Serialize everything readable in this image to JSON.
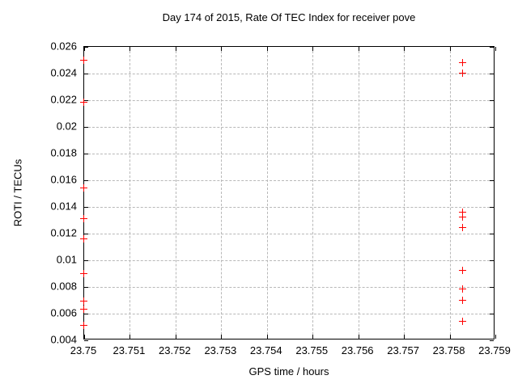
{
  "window": {
    "background_color": "#ffffff",
    "axis_color": "#000000",
    "grid_color": "#b8b8b8"
  },
  "chart_data": {
    "type": "scatter",
    "title": "Day 174 of 2015, Rate Of TEC Index for receiver pove",
    "xlabel": "GPS time / hours",
    "ylabel": "ROTI / TECUs",
    "xlim": [
      23.75,
      23.759
    ],
    "ylim": [
      0.004,
      0.026
    ],
    "grid": true,
    "legend": "none",
    "marker_symbol": "plus",
    "marker_color": "#ff0000",
    "x_ticks": [
      {
        "v": 23.75,
        "label": "23.75"
      },
      {
        "v": 23.751,
        "label": "23.751"
      },
      {
        "v": 23.752,
        "label": "23.752"
      },
      {
        "v": 23.753,
        "label": "23.753"
      },
      {
        "v": 23.754,
        "label": "23.754"
      },
      {
        "v": 23.755,
        "label": "23.755"
      },
      {
        "v": 23.756,
        "label": "23.756"
      },
      {
        "v": 23.757,
        "label": "23.757"
      },
      {
        "v": 23.758,
        "label": "23.758"
      },
      {
        "v": 23.759,
        "label": "23.759"
      }
    ],
    "y_ticks": [
      {
        "v": 0.004,
        "label": "0.004"
      },
      {
        "v": 0.006,
        "label": "0.006"
      },
      {
        "v": 0.008,
        "label": "0.008"
      },
      {
        "v": 0.01,
        "label": "0.01"
      },
      {
        "v": 0.012,
        "label": "0.012"
      },
      {
        "v": 0.014,
        "label": "0.014"
      },
      {
        "v": 0.016,
        "label": "0.016"
      },
      {
        "v": 0.018,
        "label": "0.018"
      },
      {
        "v": 0.02,
        "label": "0.02"
      },
      {
        "v": 0.022,
        "label": "0.022"
      },
      {
        "v": 0.024,
        "label": "0.024"
      },
      {
        "v": 0.026,
        "label": "0.026"
      }
    ],
    "series": [
      {
        "name": "ROTI",
        "color": "#ff0000",
        "points": [
          [
            23.75,
            0.025
          ],
          [
            23.75,
            0.0218
          ],
          [
            23.75,
            0.0154
          ],
          [
            23.75,
            0.0131
          ],
          [
            23.75,
            0.0116
          ],
          [
            23.75,
            0.009
          ],
          [
            23.75,
            0.0069
          ],
          [
            23.75,
            0.0063
          ],
          [
            23.75,
            0.0051
          ],
          [
            23.7583,
            0.0248
          ],
          [
            23.7583,
            0.024
          ],
          [
            23.7583,
            0.0136
          ],
          [
            23.7583,
            0.0132
          ],
          [
            23.7583,
            0.0124
          ],
          [
            23.7583,
            0.0092
          ],
          [
            23.7583,
            0.0078
          ],
          [
            23.7583,
            0.007
          ],
          [
            23.7583,
            0.0054
          ]
        ]
      }
    ]
  }
}
